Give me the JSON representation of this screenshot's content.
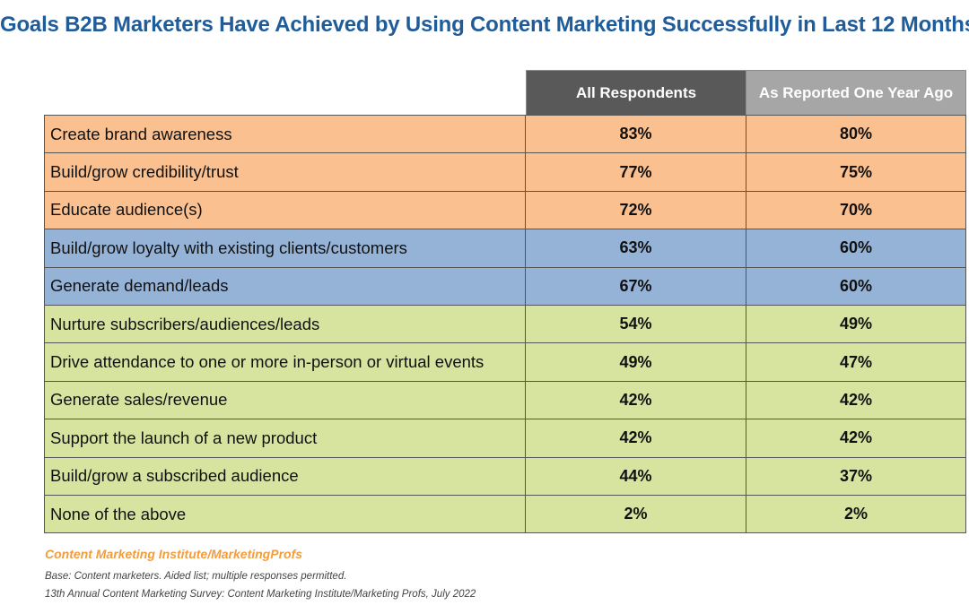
{
  "title": "Goals B2B Marketers Have Achieved by Using Content Marketing Successfully in Last 12 Months",
  "colors": {
    "title": "#1f5c99",
    "header_all": "#595959",
    "header_prior": "#a6a6a6",
    "orange": "#fac08f",
    "blue": "#95b3d7",
    "green": "#d7e4a0",
    "source": "#f39c3b"
  },
  "chart_data": {
    "type": "table",
    "columns": [
      "All  Respondents",
      "As Reported One Year Ago"
    ],
    "rows": [
      {
        "label": "Create brand awareness",
        "values": [
          "83%",
          "80%"
        ],
        "group": "orange"
      },
      {
        "label": "Build/grow credibility/trust",
        "values": [
          "77%",
          "75%"
        ],
        "group": "orange"
      },
      {
        "label": "Educate audience(s)",
        "values": [
          "72%",
          "70%"
        ],
        "group": "orange"
      },
      {
        "label": "Build/grow loyalty with existing clients/customers",
        "values": [
          "63%",
          "60%"
        ],
        "group": "blue"
      },
      {
        "label": "Generate demand/leads",
        "values": [
          "67%",
          "60%"
        ],
        "group": "blue"
      },
      {
        "label": "Nurture subscribers/audiences/leads",
        "values": [
          "54%",
          "49%"
        ],
        "group": "green"
      },
      {
        "label": "Drive attendance to one or more in-person or virtual events",
        "values": [
          "49%",
          "47%"
        ],
        "group": "green"
      },
      {
        "label": "Generate sales/revenue",
        "values": [
          "42%",
          "42%"
        ],
        "group": "green"
      },
      {
        "label": "Support the launch of a new product",
        "values": [
          "42%",
          "42%"
        ],
        "group": "green"
      },
      {
        "label": "Build/grow a subscribed audience",
        "values": [
          "44%",
          "37%"
        ],
        "group": "green"
      },
      {
        "label": "None of the above",
        "values": [
          "2%",
          "2%"
        ],
        "group": "green"
      }
    ]
  },
  "footer": {
    "source": "Content Marketing Institute/MarketingProfs",
    "base": "Base: Content marketers. Aided list; multiple responses permitted.",
    "survey": "13th Annual Content Marketing Survey: Content Marketing Institute/Marketing Profs, July 2022"
  }
}
